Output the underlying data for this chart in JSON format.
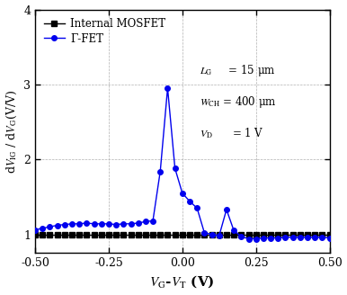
{
  "mosfet_x": [
    -0.5,
    -0.475,
    -0.45,
    -0.425,
    -0.4,
    -0.375,
    -0.35,
    -0.325,
    -0.3,
    -0.275,
    -0.25,
    -0.225,
    -0.2,
    -0.175,
    -0.15,
    -0.125,
    -0.1,
    -0.075,
    -0.05,
    -0.025,
    0.0,
    0.025,
    0.05,
    0.075,
    0.1,
    0.125,
    0.15,
    0.175,
    0.2,
    0.225,
    0.25,
    0.275,
    0.3,
    0.325,
    0.35,
    0.375,
    0.4,
    0.425,
    0.45,
    0.475,
    0.5
  ],
  "mosfet_y": [
    1.0,
    1.0,
    1.0,
    1.0,
    1.0,
    1.0,
    1.0,
    1.0,
    1.0,
    1.0,
    1.0,
    1.0,
    1.0,
    1.0,
    1.0,
    1.0,
    1.0,
    1.0,
    1.0,
    1.0,
    1.0,
    1.0,
    1.0,
    1.0,
    1.0,
    1.0,
    1.0,
    1.0,
    1.0,
    1.0,
    1.0,
    1.0,
    1.0,
    1.0,
    1.0,
    1.0,
    1.0,
    1.0,
    1.0,
    1.0,
    1.0
  ],
  "gfet_x": [
    -0.5,
    -0.475,
    -0.45,
    -0.425,
    -0.4,
    -0.375,
    -0.35,
    -0.325,
    -0.3,
    -0.275,
    -0.25,
    -0.225,
    -0.2,
    -0.175,
    -0.15,
    -0.125,
    -0.1,
    -0.075,
    -0.05,
    -0.025,
    0.0,
    0.025,
    0.05,
    0.075,
    0.1,
    0.125,
    0.15,
    0.175,
    0.2,
    0.225,
    0.25,
    0.275,
    0.3,
    0.325,
    0.35,
    0.375,
    0.4,
    0.425,
    0.45,
    0.475,
    0.5
  ],
  "gfet_y": [
    1.06,
    1.08,
    1.1,
    1.12,
    1.13,
    1.14,
    1.14,
    1.15,
    1.14,
    1.14,
    1.14,
    1.13,
    1.14,
    1.14,
    1.15,
    1.17,
    1.18,
    1.84,
    2.95,
    1.88,
    1.55,
    1.44,
    1.35,
    1.02,
    1.0,
    0.98,
    1.33,
    1.05,
    0.97,
    0.94,
    0.94,
    0.95,
    0.95,
    0.95,
    0.96,
    0.96,
    0.96,
    0.96,
    0.96,
    0.96,
    0.95
  ],
  "mosfet_color": "#000000",
  "gfet_color": "#0000ee",
  "xlim": [
    -0.5,
    0.5
  ],
  "ylim": [
    0.75,
    4.0
  ],
  "yticks": [
    1,
    2,
    3,
    4
  ],
  "xticks": [
    -0.5,
    -0.25,
    0.0,
    0.25,
    0.5
  ],
  "legend_mosfet": "Internal MOSFET",
  "legend_gfet": "Γ-FET",
  "background_color": "#ffffff",
  "grid_color": "#b0b0b0"
}
